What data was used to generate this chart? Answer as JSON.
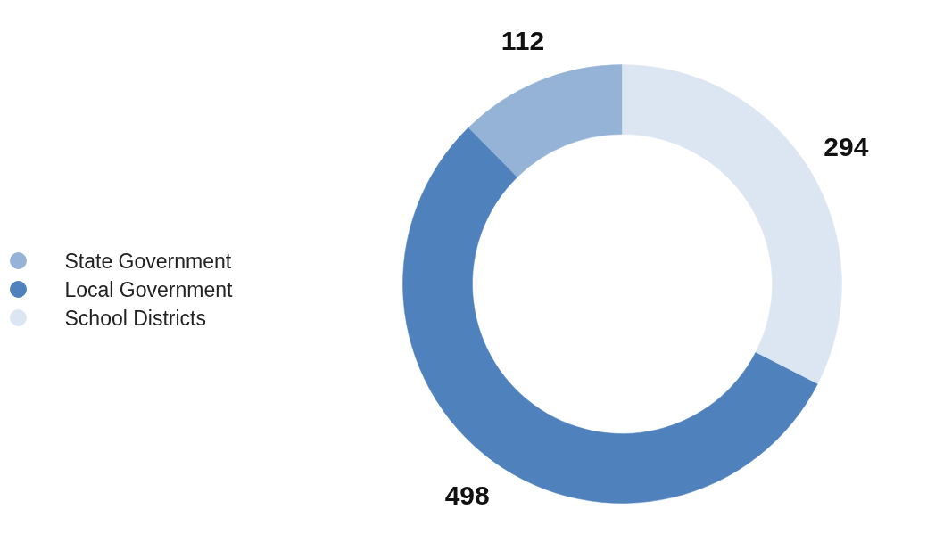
{
  "chart_data": {
    "type": "donut",
    "categories": [
      "State Government",
      "Local Government",
      "School Districts"
    ],
    "values": [
      112,
      498,
      294
    ],
    "colors": [
      "#95b3d7",
      "#4f81bd",
      "#dce6f2"
    ],
    "data_labels": true,
    "legend": "left"
  }
}
